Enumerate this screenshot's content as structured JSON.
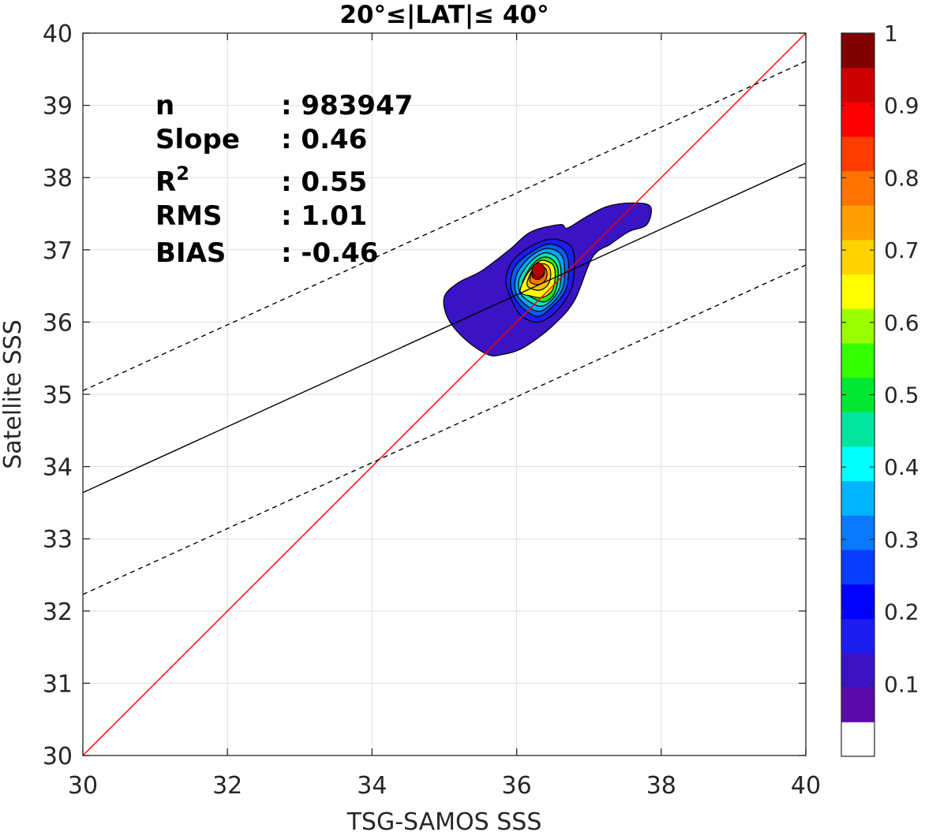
{
  "chart_data": {
    "type": "contour",
    "title": "20°≤|LAT|≤ 40°",
    "xlabel": "TSG-SAMOS SSS",
    "ylabel": "Satellite SSS",
    "xlim": [
      30,
      40
    ],
    "ylim": [
      30,
      40
    ],
    "xticks": [
      30,
      32,
      34,
      36,
      38,
      40
    ],
    "yticks": [
      30,
      31,
      32,
      33,
      34,
      35,
      36,
      37,
      38,
      39,
      40
    ],
    "grid": true,
    "stats": [
      {
        "label": "n",
        "sup": "",
        "value": ": 983947"
      },
      {
        "label": "Slope",
        "sup": "",
        "value": ": 0.46"
      },
      {
        "label": "R",
        "sup": "2",
        "value": ": 0.55"
      },
      {
        "label": "RMS",
        "sup": "",
        "value": ": 1.01"
      },
      {
        "label": "BIAS",
        "sup": "",
        "value": ": -0.46"
      }
    ],
    "lines": [
      {
        "role": "one-to-one",
        "color": "#ff0000",
        "style": "solid",
        "x": [
          30,
          40
        ],
        "y": [
          30,
          40
        ]
      },
      {
        "role": "regression",
        "color": "#000000",
        "style": "solid",
        "x": [
          30,
          40
        ],
        "y": [
          33.64,
          38.2
        ]
      },
      {
        "role": "upper-bound",
        "color": "#000000",
        "style": "dashed",
        "x": [
          30,
          40
        ],
        "y": [
          35.05,
          39.61
        ]
      },
      {
        "role": "lower-bound",
        "color": "#000000",
        "style": "dashed",
        "x": [
          30,
          40
        ],
        "y": [
          32.23,
          36.79
        ]
      }
    ],
    "density_center": {
      "x": 36.3,
      "y": 36.72
    },
    "contour_levels": [
      {
        "level": 0.05,
        "color": "#3a13c4",
        "points": [
          [
            35.0,
            36.35
          ],
          [
            35.05,
            36.05
          ],
          [
            35.3,
            35.75
          ],
          [
            35.6,
            35.55
          ],
          [
            35.8,
            35.55
          ],
          [
            36.1,
            35.65
          ],
          [
            36.5,
            35.95
          ],
          [
            36.8,
            36.3
          ],
          [
            37.05,
            36.9
          ],
          [
            37.3,
            37.08
          ],
          [
            37.55,
            37.25
          ],
          [
            37.8,
            37.35
          ],
          [
            37.85,
            37.6
          ],
          [
            37.6,
            37.65
          ],
          [
            37.25,
            37.6
          ],
          [
            36.95,
            37.45
          ],
          [
            36.7,
            37.3
          ],
          [
            36.6,
            37.35
          ],
          [
            36.2,
            37.25
          ],
          [
            35.9,
            37.0
          ],
          [
            35.5,
            36.7
          ],
          [
            35.2,
            36.55
          ]
        ]
      },
      {
        "level": 0.15,
        "color": "#1c1cf0",
        "points": [
          [
            35.9,
            36.38
          ],
          [
            36.05,
            36.1
          ],
          [
            36.3,
            36.0
          ],
          [
            36.55,
            36.15
          ],
          [
            36.75,
            36.45
          ],
          [
            36.8,
            36.8
          ],
          [
            36.75,
            37.05
          ],
          [
            36.5,
            37.15
          ],
          [
            36.2,
            37.05
          ],
          [
            35.95,
            36.85
          ],
          [
            35.85,
            36.6
          ]
        ]
      },
      {
        "level": 0.25,
        "color": "#0a5cf5",
        "points": [
          [
            35.95,
            36.38
          ],
          [
            36.1,
            36.18
          ],
          [
            36.3,
            36.08
          ],
          [
            36.5,
            36.22
          ],
          [
            36.68,
            36.45
          ],
          [
            36.72,
            36.8
          ],
          [
            36.65,
            37.0
          ],
          [
            36.45,
            37.08
          ],
          [
            36.22,
            36.98
          ],
          [
            36.0,
            36.8
          ],
          [
            35.92,
            36.6
          ]
        ]
      },
      {
        "level": 0.3,
        "color": "#00a6ff",
        "points": [
          [
            36.0,
            36.38
          ],
          [
            36.15,
            36.22
          ],
          [
            36.32,
            36.15
          ],
          [
            36.5,
            36.27
          ],
          [
            36.64,
            36.48
          ],
          [
            36.66,
            36.78
          ],
          [
            36.6,
            36.95
          ],
          [
            36.42,
            37.02
          ],
          [
            36.22,
            36.93
          ],
          [
            36.05,
            36.75
          ],
          [
            35.98,
            36.58
          ]
        ]
      },
      {
        "level": 0.4,
        "color": "#00e6b8",
        "points": [
          [
            36.05,
            36.4
          ],
          [
            36.2,
            36.27
          ],
          [
            36.35,
            36.22
          ],
          [
            36.5,
            36.32
          ],
          [
            36.6,
            36.5
          ],
          [
            36.61,
            36.75
          ],
          [
            36.55,
            36.9
          ],
          [
            36.4,
            36.96
          ],
          [
            36.24,
            36.88
          ],
          [
            36.1,
            36.72
          ],
          [
            36.03,
            36.57
          ]
        ]
      },
      {
        "level": 0.5,
        "color": "#33e61a",
        "points": [
          [
            36.1,
            36.42
          ],
          [
            36.25,
            36.32
          ],
          [
            36.38,
            36.28
          ],
          [
            36.5,
            36.36
          ],
          [
            36.56,
            36.52
          ],
          [
            36.57,
            36.74
          ],
          [
            36.5,
            36.86
          ],
          [
            36.38,
            36.9
          ],
          [
            36.25,
            36.83
          ],
          [
            36.14,
            36.68
          ],
          [
            36.08,
            36.55
          ]
        ]
      },
      {
        "level": 0.6,
        "color": "#ffff00",
        "points": [
          [
            36.05,
            36.42
          ],
          [
            36.2,
            36.36
          ],
          [
            36.35,
            36.34
          ],
          [
            36.48,
            36.42
          ],
          [
            36.53,
            36.58
          ],
          [
            36.52,
            36.76
          ],
          [
            36.45,
            36.83
          ],
          [
            36.33,
            36.85
          ],
          [
            36.22,
            36.76
          ],
          [
            36.12,
            36.62
          ]
        ]
      },
      {
        "level": 0.7,
        "color": "#ffbf00",
        "points": [
          [
            36.15,
            36.5
          ],
          [
            36.3,
            36.44
          ],
          [
            36.42,
            36.5
          ],
          [
            36.47,
            36.63
          ],
          [
            36.45,
            36.76
          ],
          [
            36.36,
            36.81
          ],
          [
            36.26,
            36.77
          ],
          [
            36.18,
            36.65
          ]
        ]
      },
      {
        "level": 0.8,
        "color": "#ff7300",
        "points": [
          [
            36.19,
            36.55
          ],
          [
            36.3,
            36.52
          ],
          [
            36.39,
            36.57
          ],
          [
            36.42,
            36.67
          ],
          [
            36.39,
            36.75
          ],
          [
            36.31,
            36.78
          ],
          [
            36.23,
            36.73
          ],
          [
            36.19,
            36.63
          ]
        ]
      },
      {
        "level": 0.9,
        "color": "#e60000",
        "points": [
          [
            36.22,
            36.62
          ],
          [
            36.3,
            36.59
          ],
          [
            36.37,
            36.64
          ],
          [
            36.38,
            36.71
          ],
          [
            36.33,
            36.76
          ],
          [
            36.26,
            36.75
          ],
          [
            36.22,
            36.69
          ]
        ]
      }
    ],
    "colorbar": {
      "ticks": [
        "0.1",
        "0.2",
        "0.3",
        "0.4",
        "0.5",
        "0.6",
        "0.7",
        "0.8",
        "0.9",
        "1"
      ],
      "tick_values": [
        0.1,
        0.2,
        0.3,
        0.4,
        0.5,
        0.6,
        0.7,
        0.8,
        0.9,
        1.0
      ],
      "range": [
        0,
        1
      ],
      "colors": [
        "#ffffff",
        "#5b0aa8",
        "#3a13c4",
        "#1c1cf0",
        "#0000ff",
        "#0a3cff",
        "#0a78ff",
        "#00b4ff",
        "#00ffff",
        "#00e6a0",
        "#00e632",
        "#33ff00",
        "#99ff00",
        "#ffff00",
        "#ffd200",
        "#ffa000",
        "#ff7300",
        "#ff3c00",
        "#ff0000",
        "#cc0000",
        "#800000"
      ]
    }
  }
}
